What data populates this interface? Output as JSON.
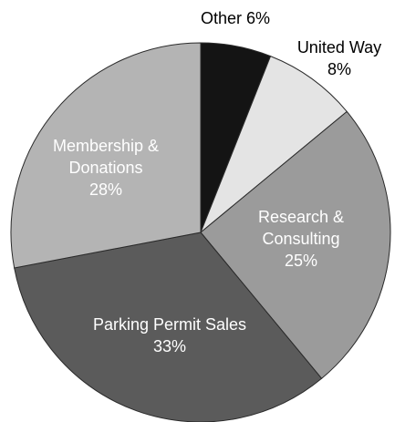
{
  "chart_data": {
    "type": "pie",
    "categories": [
      "Other",
      "United Way",
      "Research & Consulting",
      "Parking Permit Sales",
      "Membership & Donations"
    ],
    "values": [
      6,
      8,
      25,
      33,
      28
    ],
    "value_labels": [
      "6%",
      "8%",
      "25%",
      "33%",
      "28%"
    ],
    "colors": [
      "#141414",
      "#e4e4e4",
      "#9b9b9b",
      "#5b5b5b",
      "#b4b4b4"
    ]
  }
}
